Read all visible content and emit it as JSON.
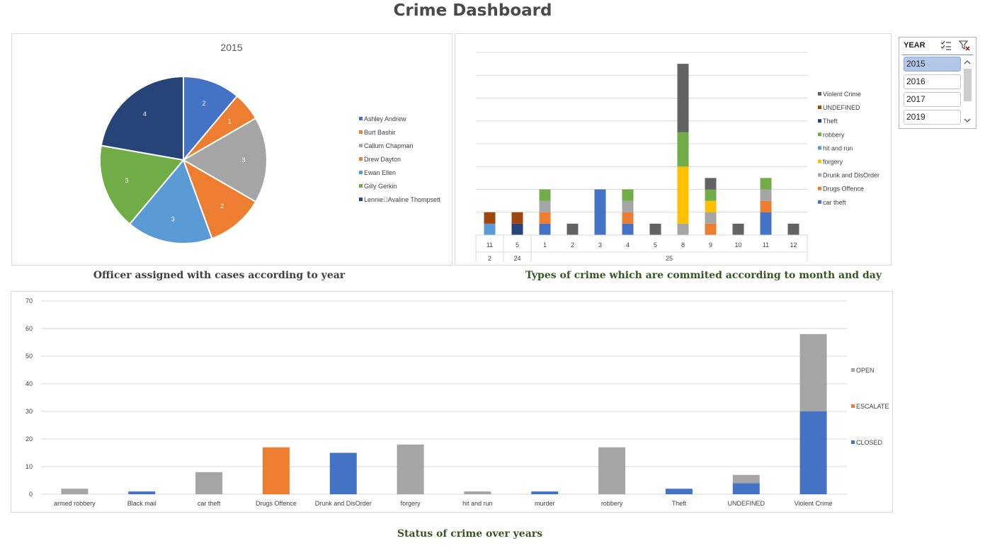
{
  "title": "Crime Dashboard",
  "colors": {
    "blue": "#4472c4",
    "orange": "#ed7d31",
    "gray": "#a5a5a5",
    "yellow": "#ffc000",
    "lightblue": "#5b9bd5",
    "green": "#70ad47",
    "navy": "#264478",
    "brown": "#9e480e",
    "darkgray": "#636363",
    "caption_dark": "#404040",
    "caption_green": "#375623"
  },
  "pie_caption": "Officer assigned with cases according to year",
  "bar_caption": "Types of crime which are commited according to month and day",
  "status_caption": "Status of crime over years",
  "slicer": {
    "header": "YEAR",
    "items": [
      "2015",
      "2016",
      "2017",
      "2019"
    ],
    "selected": "2015",
    "icons": [
      "multi-select-icon",
      "clear-filter-icon"
    ]
  },
  "chart_data": [
    {
      "type": "pie",
      "title": "2015",
      "categories": [
        "Ashley Andrew",
        "Burt Bashir",
        "Callum Chapman",
        "Drew Dayton",
        "Ewan Ellen",
        "Gilly Gerkin",
        "Lennie\u0000Avaline Thompsett"
      ],
      "values": [
        2,
        1,
        3,
        2,
        3,
        3,
        4
      ],
      "colors": [
        "#4472c4",
        "#ed7d31",
        "#a5a5a5",
        "#ed7d31",
        "#5b9bd5",
        "#70ad47",
        "#264478"
      ],
      "legend": "right",
      "data_labels": true
    },
    {
      "type": "bar",
      "stacked": true,
      "categories": [
        "11",
        "5",
        "1",
        "2",
        "3",
        "4",
        "5",
        "8",
        "9",
        "10",
        "11",
        "12"
      ],
      "category_groups": [
        {
          "label": "2",
          "count": 1
        },
        {
          "label": "24",
          "count": 1
        },
        {
          "label": "25",
          "count": 10
        }
      ],
      "series": [
        {
          "name": "car theft",
          "color": "#4472c4",
          "values": [
            0,
            0,
            1,
            0,
            4,
            1,
            0,
            0,
            0,
            0,
            2,
            0
          ]
        },
        {
          "name": "Drugs Offence",
          "color": "#ed7d31",
          "values": [
            0,
            0,
            1,
            0,
            0,
            1,
            0,
            0,
            1,
            0,
            1,
            0
          ]
        },
        {
          "name": "Drunk and DisOrder",
          "color": "#a5a5a5",
          "values": [
            0,
            0,
            1,
            0,
            0,
            1,
            0,
            1,
            1,
            0,
            1,
            0
          ]
        },
        {
          "name": "forgery",
          "color": "#ffc000",
          "values": [
            0,
            0,
            0,
            0,
            0,
            0,
            0,
            5,
            1,
            0,
            0,
            0
          ]
        },
        {
          "name": "hit and run",
          "color": "#5b9bd5",
          "values": [
            1,
            0,
            0,
            0,
            0,
            0,
            0,
            0,
            0,
            0,
            0,
            0
          ]
        },
        {
          "name": "robbery",
          "color": "#70ad47",
          "values": [
            0,
            0,
            1,
            0,
            0,
            1,
            0,
            3,
            1,
            0,
            1,
            0
          ]
        },
        {
          "name": "Theft",
          "color": "#264478",
          "values": [
            0,
            1,
            0,
            0,
            0,
            0,
            0,
            0,
            0,
            0,
            0,
            0
          ]
        },
        {
          "name": "UNDEFINED",
          "color": "#9e480e",
          "values": [
            1,
            1,
            0,
            0,
            0,
            0,
            0,
            0,
            0,
            0,
            0,
            0
          ]
        },
        {
          "name": "Violent Crime",
          "color": "#636363",
          "values": [
            0,
            0,
            0,
            1,
            0,
            0,
            1,
            6,
            1,
            1,
            0,
            1
          ]
        }
      ],
      "ylim": [
        0,
        16
      ],
      "gridlines": true,
      "legend": "right"
    },
    {
      "type": "bar",
      "stacked": true,
      "categories": [
        "armed robbery",
        "Black mail",
        "car theft",
        "Drugs Offence",
        "Drunk and DisOrder",
        "forgery",
        "hit and run",
        "murder",
        "robbery",
        "Theft",
        "UNDEFINED",
        "Violent Crime"
      ],
      "series": [
        {
          "name": "CLOSED",
          "color": "#4472c4",
          "values": [
            0,
            1,
            0,
            0,
            15,
            0,
            0,
            1,
            0,
            2,
            4,
            30
          ]
        },
        {
          "name": "ESCALATE",
          "color": "#ed7d31",
          "values": [
            0,
            0,
            0,
            17,
            0,
            0,
            0,
            0,
            0,
            0,
            0,
            0
          ]
        },
        {
          "name": "OPEN",
          "color": "#a5a5a5",
          "values": [
            2,
            0,
            8,
            0,
            0,
            18,
            1,
            0,
            17,
            0,
            3,
            28
          ]
        }
      ],
      "yticks": [
        0,
        10,
        20,
        30,
        40,
        50,
        60,
        70
      ],
      "ylim": [
        0,
        70
      ],
      "gridlines": true,
      "legend": "right"
    }
  ]
}
